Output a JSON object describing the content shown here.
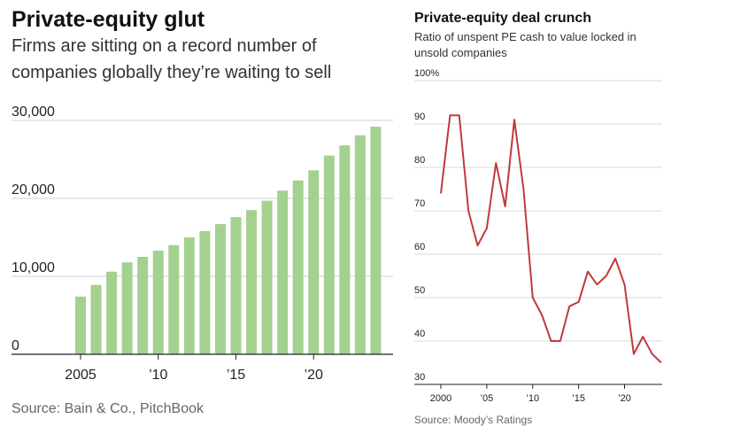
{
  "chart_data": [
    {
      "type": "bar",
      "title": "Private-equity glut",
      "subtitle_lines": [
        "Firms are sitting on a record number of",
        "companies globally they’re waiting to sell"
      ],
      "series_name": "Companies held",
      "categories": [
        2005,
        2006,
        2007,
        2008,
        2009,
        2010,
        2011,
        2012,
        2013,
        2014,
        2015,
        2016,
        2017,
        2018,
        2019,
        2020,
        2021,
        2022,
        2023,
        2024
      ],
      "values": [
        7400,
        8900,
        10600,
        11800,
        12500,
        13300,
        14000,
        15000,
        15800,
        16700,
        17600,
        18500,
        19700,
        21000,
        22300,
        23600,
        25500,
        26800,
        28100,
        29200
      ],
      "ylim": [
        0,
        30000
      ],
      "yticks": [
        0,
        10000,
        20000,
        30000
      ],
      "ytick_labels": [
        "0",
        "10,000",
        "20,000",
        "30,000"
      ],
      "xticks": [
        2005,
        2010,
        2015,
        2020
      ],
      "xtick_labels": [
        "2005",
        "’10",
        "’15",
        "’20"
      ],
      "xlabel": "",
      "ylabel": "",
      "grid": true,
      "bar_color": "#a3d18f",
      "source": "Source: Bain & Co., PitchBook"
    },
    {
      "type": "line",
      "title": "Private-equity deal crunch",
      "subtitle_lines": [
        "Ratio of unspent PE cash to value locked in",
        "unsold companies"
      ],
      "series_name": "Ratio",
      "x": [
        2000,
        2001,
        2002,
        2003,
        2004,
        2005,
        2006,
        2007,
        2008,
        2009,
        2010,
        2011,
        2012,
        2013,
        2014,
        2015,
        2016,
        2017,
        2018,
        2019,
        2020,
        2021,
        2022,
        2023,
        2024
      ],
      "y": [
        74,
        92,
        92,
        70,
        62,
        66,
        81,
        71,
        91,
        75,
        50,
        46,
        40,
        40,
        48,
        49,
        56,
        53,
        55,
        59,
        53,
        37,
        41,
        37,
        35
      ],
      "ylim": [
        30,
        100
      ],
      "yticks": [
        30,
        40,
        50,
        60,
        70,
        80,
        90,
        100
      ],
      "ytick_labels": [
        "30",
        "40",
        "50",
        "60",
        "70",
        "80",
        "90",
        "100%"
      ],
      "xlim": [
        2000,
        2024
      ],
      "xticks": [
        2000,
        2005,
        2010,
        2015,
        2020
      ],
      "xtick_labels": [
        "2000",
        "’05",
        "’10",
        "’15",
        "’20"
      ],
      "xlabel": "",
      "ylabel": "",
      "grid": true,
      "line_color": "#c0393d",
      "source": "Source: Moody’s Ratings"
    }
  ]
}
